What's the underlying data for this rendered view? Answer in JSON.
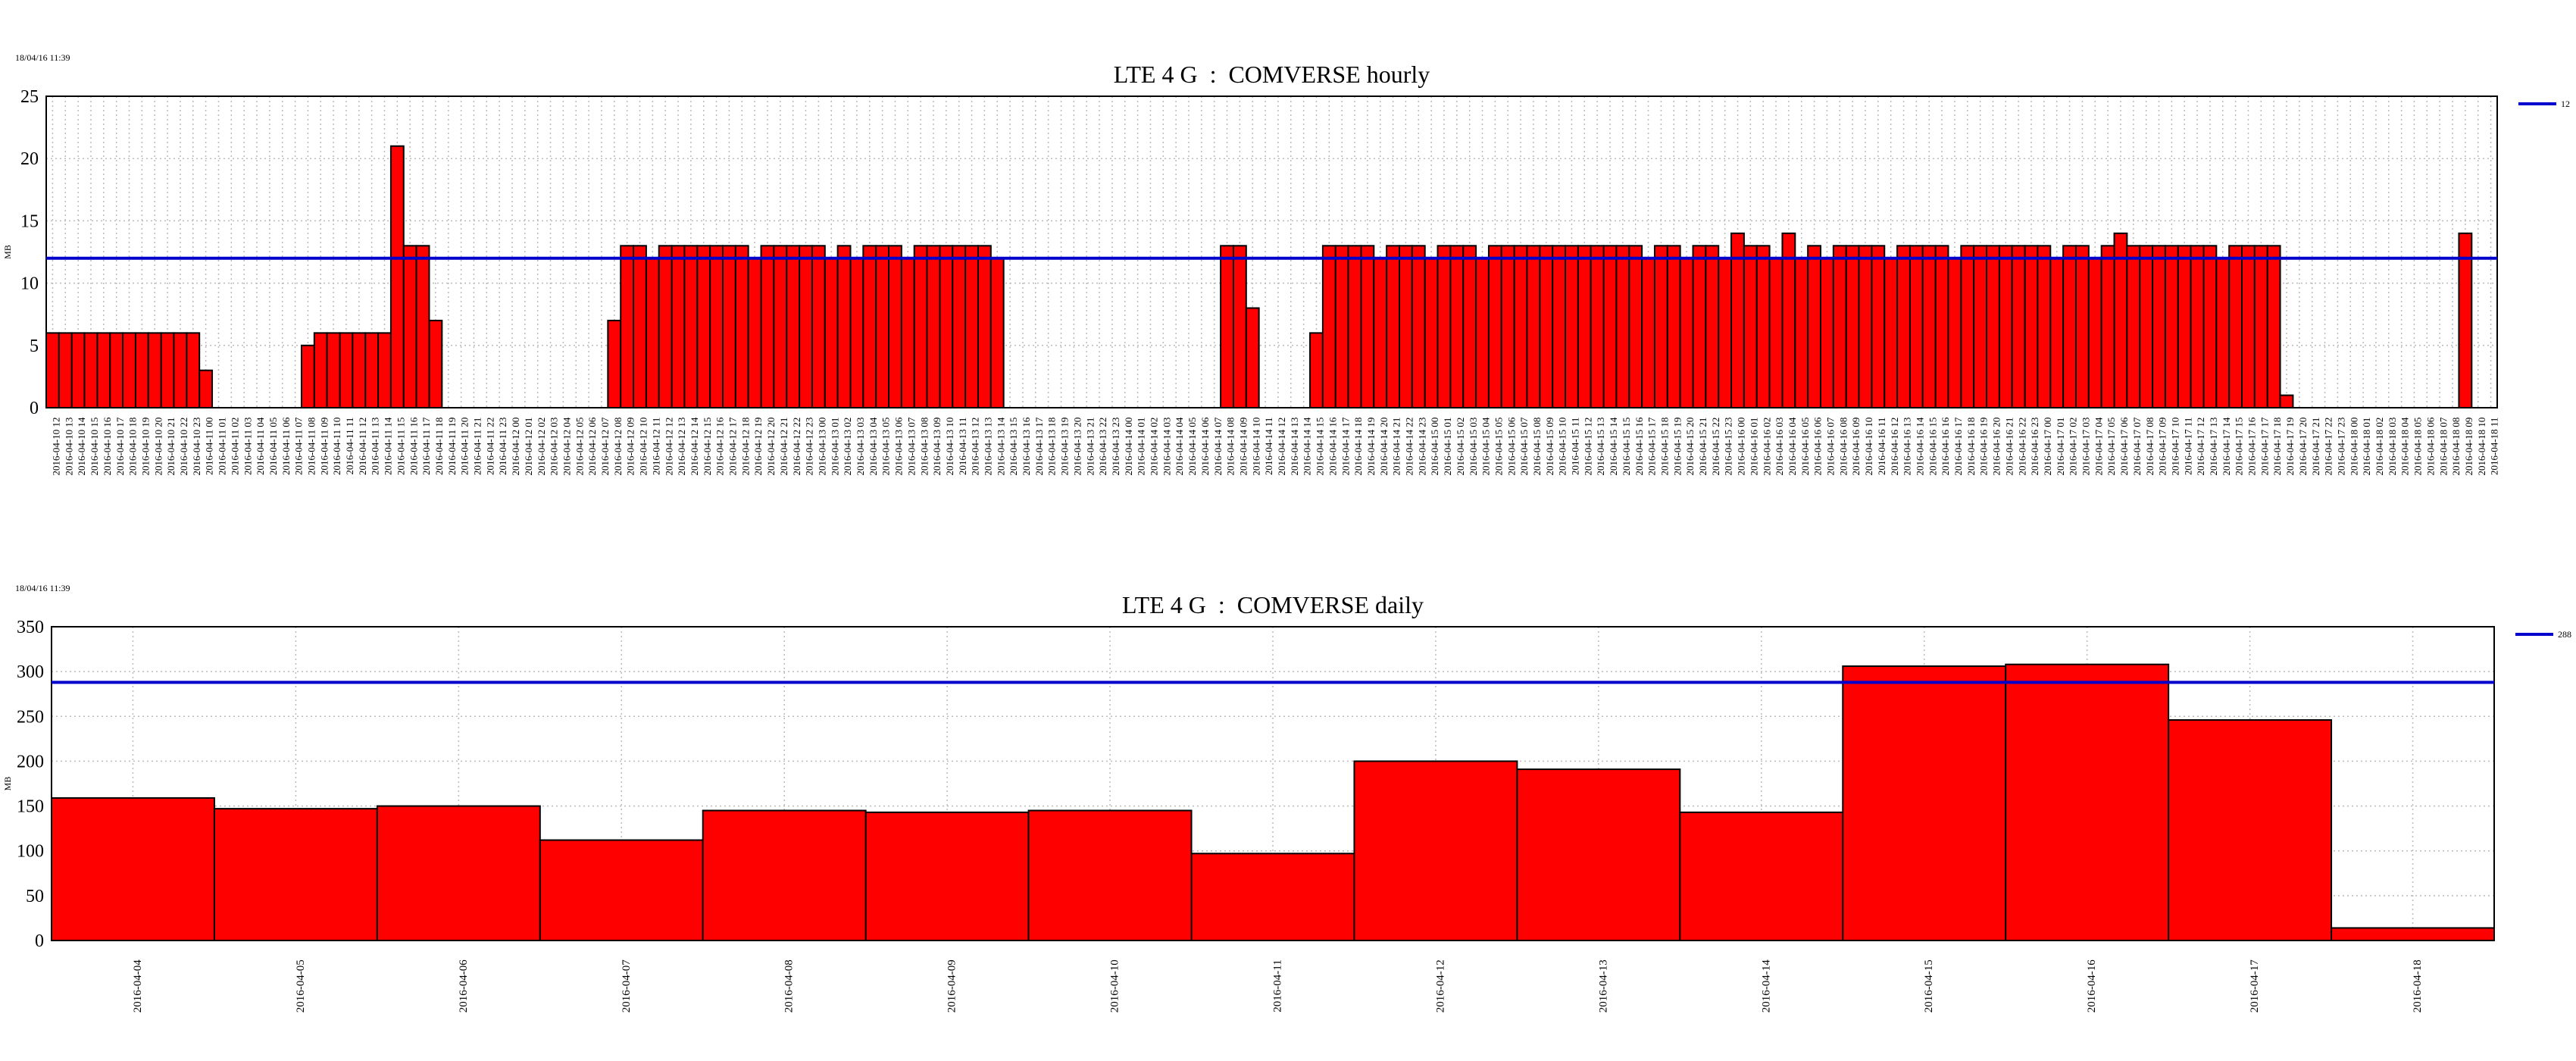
{
  "chart_data": [
    {
      "type": "bar",
      "timestamp": "18/04/16 11:39",
      "title": "LTE 4 G  :  COMVERSE hourly",
      "ylabel": "MB",
      "color": "#ff0000",
      "grid": true,
      "reference_line": {
        "value": 12,
        "color": "#0000cc"
      },
      "ylim": [
        0,
        25
      ],
      "yticks": [
        0,
        5,
        10,
        15,
        20,
        25
      ],
      "categories": [
        "2016-04-10 12",
        "2016-04-10 13",
        "2016-04-10 14",
        "2016-04-10 15",
        "2016-04-10 16",
        "2016-04-10 17",
        "2016-04-10 18",
        "2016-04-10 19",
        "2016-04-10 20",
        "2016-04-10 21",
        "2016-04-10 22",
        "2016-04-10 23",
        "2016-04-11 00",
        "2016-04-11 01",
        "2016-04-11 02",
        "2016-04-11 03",
        "2016-04-11 04",
        "2016-04-11 05",
        "2016-04-11 06",
        "2016-04-11 07",
        "2016-04-11 08",
        "2016-04-11 09",
        "2016-04-11 10",
        "2016-04-11 11",
        "2016-04-11 12",
        "2016-04-11 13",
        "2016-04-11 14",
        "2016-04-11 15",
        "2016-04-11 16",
        "2016-04-11 17",
        "2016-04-11 18",
        "2016-04-11 19",
        "2016-04-11 20",
        "2016-04-11 21",
        "2016-04-11 22",
        "2016-04-11 23",
        "2016-04-12 00",
        "2016-04-12 01",
        "2016-04-12 02",
        "2016-04-12 03",
        "2016-04-12 04",
        "2016-04-12 05",
        "2016-04-12 06",
        "2016-04-12 07",
        "2016-04-12 08",
        "2016-04-12 09",
        "2016-04-12 10",
        "2016-04-12 11",
        "2016-04-12 12",
        "2016-04-12 13",
        "2016-04-12 14",
        "2016-04-12 15",
        "2016-04-12 16",
        "2016-04-12 17",
        "2016-04-12 18",
        "2016-04-12 19",
        "2016-04-12 20",
        "2016-04-12 21",
        "2016-04-12 22",
        "2016-04-12 23",
        "2016-04-13 00",
        "2016-04-13 01",
        "2016-04-13 02",
        "2016-04-13 03",
        "2016-04-13 04",
        "2016-04-13 05",
        "2016-04-13 06",
        "2016-04-13 07",
        "2016-04-13 08",
        "2016-04-13 09",
        "2016-04-13 10",
        "2016-04-13 11",
        "2016-04-13 12",
        "2016-04-13 13",
        "2016-04-13 14",
        "2016-04-13 15",
        "2016-04-13 16",
        "2016-04-13 17",
        "2016-04-13 18",
        "2016-04-13 19",
        "2016-04-13 20",
        "2016-04-13 21",
        "2016-04-13 22",
        "2016-04-13 23",
        "2016-04-14 00",
        "2016-04-14 01",
        "2016-04-14 02",
        "2016-04-14 03",
        "2016-04-14 04",
        "2016-04-14 05",
        "2016-04-14 06",
        "2016-04-14 07",
        "2016-04-14 08",
        "2016-04-14 09",
        "2016-04-14 10",
        "2016-04-14 11",
        "2016-04-14 12",
        "2016-04-14 13",
        "2016-04-14 14",
        "2016-04-14 15",
        "2016-04-14 16",
        "2016-04-14 17",
        "2016-04-14 18",
        "2016-04-14 19",
        "2016-04-14 20",
        "2016-04-14 21",
        "2016-04-14 22",
        "2016-04-14 23",
        "2016-04-15 00",
        "2016-04-15 01",
        "2016-04-15 02",
        "2016-04-15 03",
        "2016-04-15 04",
        "2016-04-15 05",
        "2016-04-15 06",
        "2016-04-15 07",
        "2016-04-15 08",
        "2016-04-15 09",
        "2016-04-15 10",
        "2016-04-15 11",
        "2016-04-15 12",
        "2016-04-15 13",
        "2016-04-15 14",
        "2016-04-15 15",
        "2016-04-15 16",
        "2016-04-15 17",
        "2016-04-15 18",
        "2016-04-15 19",
        "2016-04-15 20",
        "2016-04-15 21",
        "2016-04-15 22",
        "2016-04-15 23",
        "2016-04-16 00",
        "2016-04-16 01",
        "2016-04-16 02",
        "2016-04-16 03",
        "2016-04-16 04",
        "2016-04-16 05",
        "2016-04-16 06",
        "2016-04-16 07",
        "2016-04-16 08",
        "2016-04-16 09",
        "2016-04-16 10",
        "2016-04-16 11",
        "2016-04-16 12",
        "2016-04-16 13",
        "2016-04-16 14",
        "2016-04-16 15",
        "2016-04-16 16",
        "2016-04-16 17",
        "2016-04-16 18",
        "2016-04-16 19",
        "2016-04-16 20",
        "2016-04-16 21",
        "2016-04-16 22",
        "2016-04-16 23",
        "2016-04-17 00",
        "2016-04-17 01",
        "2016-04-17 02",
        "2016-04-17 03",
        "2016-04-17 04",
        "2016-04-17 05",
        "2016-04-17 06",
        "2016-04-17 07",
        "2016-04-17 08",
        "2016-04-17 09",
        "2016-04-17 10",
        "2016-04-17 11",
        "2016-04-17 12",
        "2016-04-17 13",
        "2016-04-17 14",
        "2016-04-17 15",
        "2016-04-17 16",
        "2016-04-17 17",
        "2016-04-17 18",
        "2016-04-17 19",
        "2016-04-17 20",
        "2016-04-17 21",
        "2016-04-17 22",
        "2016-04-17 23",
        "2016-04-18 00",
        "2016-04-18 01",
        "2016-04-18 02",
        "2016-04-18 03",
        "2016-04-18 04",
        "2016-04-18 05",
        "2016-04-18 06",
        "2016-04-18 07",
        "2016-04-18 08",
        "2016-04-18 09",
        "2016-04-18 10",
        "2016-04-18 11"
      ],
      "values": [
        6,
        6,
        6,
        6,
        6,
        6,
        6,
        6,
        6,
        6,
        6,
        6,
        3,
        0,
        0,
        0,
        0,
        0,
        0,
        0,
        5,
        6,
        6,
        6,
        6,
        6,
        6,
        21,
        13,
        13,
        7,
        0,
        0,
        0,
        0,
        0,
        0,
        0,
        0,
        0,
        0,
        0,
        0,
        0,
        7,
        13,
        13,
        12,
        13,
        13,
        13,
        13,
        13,
        13,
        13,
        12,
        13,
        13,
        13,
        13,
        13,
        12,
        13,
        12,
        13,
        13,
        13,
        12,
        13,
        13,
        13,
        13,
        13,
        13,
        12,
        0,
        0,
        0,
        0,
        0,
        0,
        0,
        0,
        0,
        0,
        0,
        0,
        0,
        0,
        0,
        0,
        0,
        13,
        13,
        8,
        0,
        0,
        0,
        0,
        6,
        13,
        13,
        13,
        13,
        12,
        13,
        13,
        13,
        12,
        13,
        13,
        13,
        12,
        13,
        13,
        13,
        13,
        13,
        13,
        13,
        13,
        13,
        13,
        13,
        13,
        12,
        13,
        13,
        12,
        13,
        13,
        12,
        14,
        13,
        13,
        12,
        14,
        12,
        13,
        12,
        13,
        13,
        13,
        13,
        12,
        13,
        13,
        13,
        13,
        12,
        13,
        13,
        13,
        13,
        13,
        13,
        13,
        12,
        13,
        13,
        12,
        13,
        14,
        13,
        13,
        13,
        13,
        13,
        13,
        13,
        12,
        13,
        13,
        13,
        13,
        1,
        0,
        0,
        0,
        0,
        0,
        0,
        0,
        0,
        0,
        0,
        0,
        0,
        0,
        14,
        0,
        0
      ]
    },
    {
      "type": "bar",
      "timestamp": "18/04/16 11:39",
      "title": "LTE 4 G  :  COMVERSE daily",
      "ylabel": "MB",
      "color": "#ff0000",
      "grid": true,
      "reference_line": {
        "value": 288,
        "color": "#0000cc"
      },
      "ylim": [
        0,
        350
      ],
      "yticks": [
        0,
        50,
        100,
        150,
        200,
        250,
        300,
        350
      ],
      "categories": [
        "2016-04-04",
        "2016-04-05",
        "2016-04-06",
        "2016-04-07",
        "2016-04-08",
        "2016-04-09",
        "2016-04-10",
        "2016-04-11",
        "2016-04-12",
        "2016-04-13",
        "2016-04-14",
        "2016-04-15",
        "2016-04-16",
        "2016-04-17",
        "2016-04-18"
      ],
      "values": [
        159,
        147,
        150,
        112,
        145,
        143,
        145,
        97,
        200,
        191,
        143,
        306,
        308,
        246,
        14
      ]
    }
  ]
}
